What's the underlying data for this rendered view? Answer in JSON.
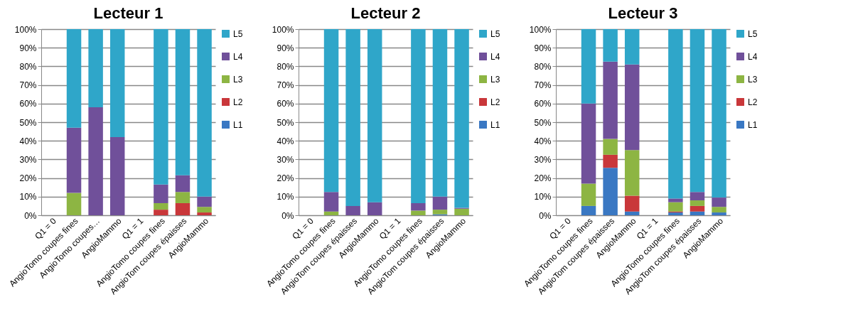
{
  "chart_data": [
    {
      "type": "bar",
      "title": "Lecteur 1",
      "stacked": true,
      "grid": "y",
      "legend": "right",
      "categories": [
        "Q1 = 0",
        "AngioTomo coupes fines",
        "AngioTomo coupes…",
        "AngioMammo",
        "Q1 = 1",
        "AngioTomo coupes fines",
        "AngioTom coupes épaisses",
        "AngioMammo"
      ],
      "ylim": [
        0,
        100
      ],
      "yticks": [
        {
          "value": 0,
          "label": "0%"
        },
        {
          "value": 10,
          "label": "10%"
        },
        {
          "value": 20,
          "label": "20%"
        },
        {
          "value": 30,
          "label": "30%"
        },
        {
          "value": 40,
          "label": "40%"
        },
        {
          "value": 50,
          "label": "50%"
        },
        {
          "value": 60,
          "label": "60%"
        },
        {
          "value": 70,
          "label": "70%"
        },
        {
          "value": 80,
          "label": "80%"
        },
        {
          "value": 90,
          "label": "90%"
        },
        {
          "value": 100,
          "label": "100%"
        }
      ],
      "series": [
        {
          "name": "L1",
          "color": "#3a78c3",
          "values": [
            null,
            0,
            0,
            0,
            null,
            0,
            0,
            0
          ]
        },
        {
          "name": "L2",
          "color": "#c9373a",
          "values": [
            null,
            0,
            0,
            0,
            null,
            3,
            6.5,
            1.5
          ]
        },
        {
          "name": "L3",
          "color": "#8db543",
          "values": [
            null,
            12,
            0,
            0,
            null,
            3.5,
            6,
            3
          ]
        },
        {
          "name": "L4",
          "color": "#70509a",
          "values": [
            null,
            35,
            58,
            42,
            null,
            10,
            9,
            5.5
          ]
        },
        {
          "name": "L5",
          "color": "#2fa6c9",
          "values": [
            null,
            53,
            42,
            58,
            null,
            83.5,
            78.5,
            90
          ]
        }
      ]
    },
    {
      "type": "bar",
      "title": "Lecteur 2",
      "stacked": true,
      "grid": "y",
      "legend": "right",
      "categories": [
        "Q1 = 0",
        "AngioTomo coupes fines",
        "AngioTom coupes épaisses",
        "AngioMammo",
        "Q1 = 1",
        "AngioTomo coupes fines",
        "AngioTom coupes épaisses",
        "AngioMammo"
      ],
      "ylim": [
        0,
        100
      ],
      "yticks": [
        {
          "value": 0,
          "label": "0%"
        },
        {
          "value": 10,
          "label": "10%"
        },
        {
          "value": 20,
          "label": "20%"
        },
        {
          "value": 30,
          "label": "30%"
        },
        {
          "value": 40,
          "label": "40%"
        },
        {
          "value": 50,
          "label": "50%"
        },
        {
          "value": 60,
          "label": "60%"
        },
        {
          "value": 70,
          "label": "70%"
        },
        {
          "value": 80,
          "label": "80%"
        },
        {
          "value": 90,
          "label": "90%"
        },
        {
          "value": 100,
          "label": "100%"
        }
      ],
      "series": [
        {
          "name": "L1",
          "color": "#3a78c3",
          "values": [
            null,
            0,
            0,
            0,
            null,
            0,
            0.5,
            0
          ]
        },
        {
          "name": "L2",
          "color": "#c9373a",
          "values": [
            null,
            0,
            0,
            0,
            null,
            0,
            0,
            0
          ]
        },
        {
          "name": "L3",
          "color": "#8db543",
          "values": [
            null,
            2,
            0,
            0,
            null,
            2.5,
            2.5,
            3.5
          ]
        },
        {
          "name": "L4",
          "color": "#70509a",
          "values": [
            null,
            10.5,
            5,
            7,
            null,
            4,
            7,
            0.5
          ]
        },
        {
          "name": "L5",
          "color": "#2fa6c9",
          "values": [
            null,
            87.5,
            95,
            93,
            null,
            93.5,
            90,
            96
          ]
        }
      ]
    },
    {
      "type": "bar",
      "title": "Lecteur 3",
      "stacked": true,
      "grid": "y",
      "legend": "right",
      "categories": [
        "Q1 = 0",
        "AngioTomo coupes fines",
        "AngioTom coupes épaisses",
        "AngioMammo",
        "Q1 = 1",
        "AngioTomo coupes fines",
        "AngioTom coupes épaisses",
        "AngioMammo"
      ],
      "ylim": [
        0,
        100
      ],
      "yticks": [
        {
          "value": 0,
          "label": "0%"
        },
        {
          "value": 10,
          "label": "10%"
        },
        {
          "value": 20,
          "label": "20%"
        },
        {
          "value": 30,
          "label": "30%"
        },
        {
          "value": 40,
          "label": "40%"
        },
        {
          "value": 50,
          "label": "50%"
        },
        {
          "value": 60,
          "label": "60%"
        },
        {
          "value": 70,
          "label": "70%"
        },
        {
          "value": 80,
          "label": "80%"
        },
        {
          "value": 90,
          "label": "90%"
        },
        {
          "value": 100,
          "label": "100%"
        }
      ],
      "series": [
        {
          "name": "L1",
          "color": "#3a78c3",
          "values": [
            null,
            5,
            25.5,
            2,
            null,
            1.5,
            2,
            1.5
          ]
        },
        {
          "name": "L2",
          "color": "#c9373a",
          "values": [
            null,
            0,
            7,
            8.5,
            null,
            0.5,
            3,
            0
          ]
        },
        {
          "name": "L3",
          "color": "#8db543",
          "values": [
            null,
            12,
            8.5,
            24.5,
            null,
            5,
            3,
            3
          ]
        },
        {
          "name": "L4",
          "color": "#70509a",
          "values": [
            null,
            43,
            41.5,
            46,
            null,
            2,
            4.5,
            5
          ]
        },
        {
          "name": "L5",
          "color": "#2fa6c9",
          "values": [
            null,
            40,
            17.5,
            19,
            null,
            91,
            87.5,
            90.5
          ]
        }
      ]
    }
  ]
}
